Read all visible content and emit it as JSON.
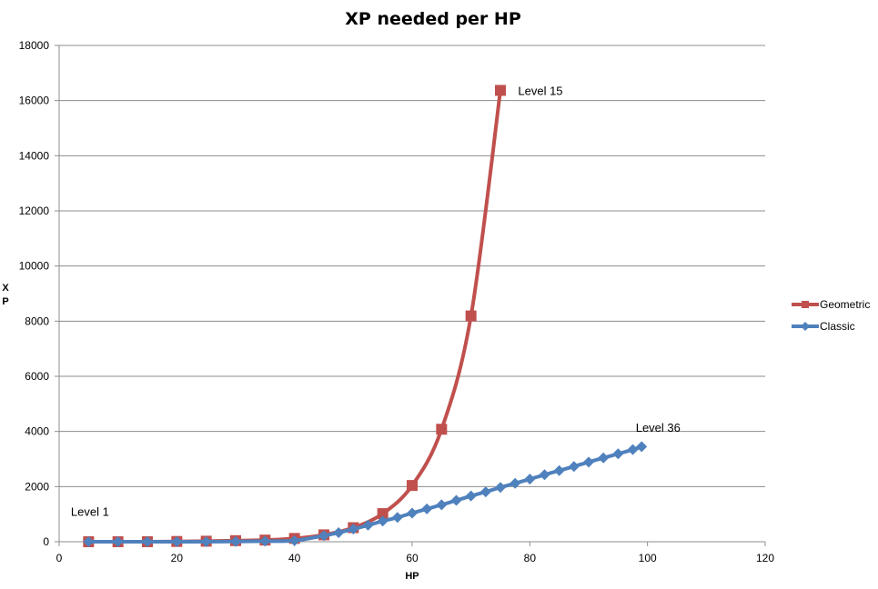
{
  "chart_data": {
    "type": "line",
    "title": "XP needed per HP",
    "xlabel": "HP",
    "ylabel": "XP",
    "xlim": [
      0,
      120
    ],
    "ylim": [
      0,
      18000
    ],
    "x_ticks": [
      0,
      20,
      40,
      60,
      80,
      100,
      120
    ],
    "y_ticks": [
      0,
      2000,
      4000,
      6000,
      8000,
      10000,
      12000,
      14000,
      16000,
      18000
    ],
    "grid": "horizontal",
    "legend_position": "right",
    "series": [
      {
        "name": "Geometric",
        "color": "#C0504D",
        "marker": "square",
        "x": [
          5,
          10,
          15,
          20,
          25,
          30,
          35,
          40,
          45,
          50,
          55,
          60,
          65,
          70,
          75
        ],
        "y": [
          0,
          0,
          0,
          10,
          20,
          40,
          60,
          120,
          250,
          510,
          1020,
          2040,
          4080,
          8190,
          16370
        ]
      },
      {
        "name": "Classic",
        "color": "#4F81BD",
        "marker": "diamond",
        "x": [
          5,
          10,
          15,
          20,
          25,
          30,
          35,
          40,
          45,
          47.5,
          50,
          52.5,
          55,
          57.5,
          60,
          62.5,
          65,
          67.5,
          70,
          72.5,
          75,
          77.5,
          80,
          82.5,
          85,
          87.5,
          90,
          92.5,
          95,
          97.5,
          99
        ],
        "y": [
          0,
          0,
          0,
          0,
          0,
          10,
          20,
          40,
          220,
          330,
          460,
          600,
          750,
          880,
          1040,
          1190,
          1340,
          1500,
          1660,
          1810,
          1970,
          2120,
          2270,
          2430,
          2580,
          2730,
          2890,
          3040,
          3190,
          3340,
          3450
        ]
      }
    ],
    "annotations": [
      {
        "text": "Level 15",
        "x": 78,
        "y": 16370
      },
      {
        "text": "Level 36",
        "x": 98,
        "y": 4150
      },
      {
        "text": "Level 1",
        "x": 2,
        "y": 1100
      }
    ]
  }
}
